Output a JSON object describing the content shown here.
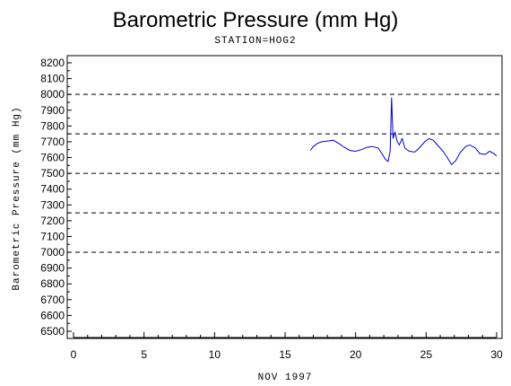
{
  "chart_data": {
    "type": "line",
    "title": "Barometric Pressure (mm Hg)",
    "subtitle": "STATION=HOG2",
    "xlabel": "NOV 1997",
    "ylabel": "Barometric Pressure (mm Hg)",
    "xlim": [
      0,
      30
    ],
    "ylim": [
      6500,
      8200
    ],
    "x_ticks": [
      0,
      5,
      10,
      15,
      20,
      25,
      30
    ],
    "y_ticks": [
      6500,
      6600,
      6700,
      6800,
      6900,
      7000,
      7100,
      7200,
      7300,
      7400,
      7500,
      7600,
      7700,
      7800,
      7900,
      8000,
      8100,
      8200
    ],
    "reference_lines": [
      7000,
      7250,
      7500,
      7750,
      8000
    ],
    "grid": false,
    "series": [
      {
        "color": "#0000cc",
        "points": [
          [
            16.8,
            7645
          ],
          [
            17.0,
            7670
          ],
          [
            17.3,
            7690
          ],
          [
            17.6,
            7700
          ],
          [
            18.0,
            7705
          ],
          [
            18.4,
            7710
          ],
          [
            18.8,
            7690
          ],
          [
            19.2,
            7665
          ],
          [
            19.6,
            7645
          ],
          [
            20.0,
            7640
          ],
          [
            20.4,
            7650
          ],
          [
            20.8,
            7665
          ],
          [
            21.2,
            7670
          ],
          [
            21.6,
            7660
          ],
          [
            21.9,
            7620
          ],
          [
            22.1,
            7590
          ],
          [
            22.3,
            7575
          ],
          [
            22.45,
            7640
          ],
          [
            22.55,
            7980
          ],
          [
            22.65,
            7720
          ],
          [
            22.8,
            7760
          ],
          [
            22.95,
            7700
          ],
          [
            23.1,
            7680
          ],
          [
            23.3,
            7720
          ],
          [
            23.5,
            7660
          ],
          [
            23.8,
            7640
          ],
          [
            24.2,
            7635
          ],
          [
            24.5,
            7660
          ],
          [
            24.9,
            7700
          ],
          [
            25.2,
            7720
          ],
          [
            25.5,
            7710
          ],
          [
            25.8,
            7680
          ],
          [
            26.2,
            7640
          ],
          [
            26.5,
            7600
          ],
          [
            26.8,
            7555
          ],
          [
            27.1,
            7580
          ],
          [
            27.4,
            7630
          ],
          [
            27.8,
            7670
          ],
          [
            28.1,
            7680
          ],
          [
            28.5,
            7660
          ],
          [
            28.8,
            7625
          ],
          [
            29.2,
            7620
          ],
          [
            29.5,
            7640
          ],
          [
            29.8,
            7625
          ],
          [
            30.0,
            7610
          ]
        ]
      }
    ]
  }
}
